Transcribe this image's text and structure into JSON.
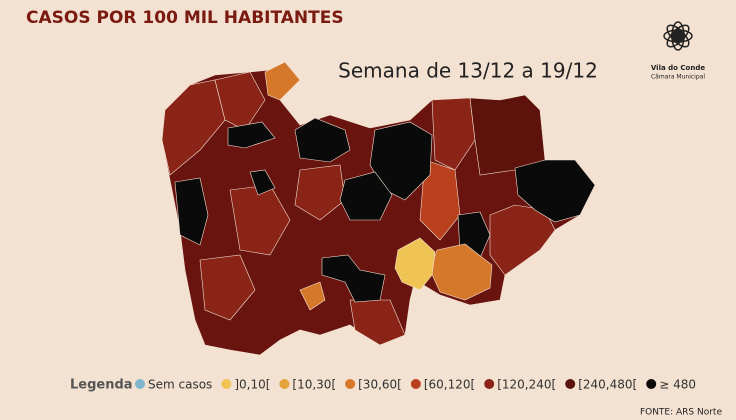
{
  "header": {
    "title": "CASOS POR 100 MIL HABITANTES",
    "subtitle": "Semana de 13/12 a 19/12"
  },
  "logo": {
    "name": "Vila do Conde",
    "subname": "Câmara Municipal"
  },
  "legend": {
    "title": "Legenda",
    "items": [
      {
        "label": "Sem casos",
        "color": "#7fb6cc"
      },
      {
        "label": "]0,10[",
        "color": "#f0c454"
      },
      {
        "label": "[10,30[",
        "color": "#e3a23a"
      },
      {
        "label": "[30,60[",
        "color": "#d6782a"
      },
      {
        "label": "[60,120[",
        "color": "#b8401c"
      },
      {
        "label": "[120,240[",
        "color": "#8a2416"
      },
      {
        "label": "[240,480[",
        "color": "#5e120c"
      },
      {
        "label": "≥ 480",
        "color": "#0a0a0a"
      }
    ]
  },
  "source": "FONTE: ARS Norte"
}
